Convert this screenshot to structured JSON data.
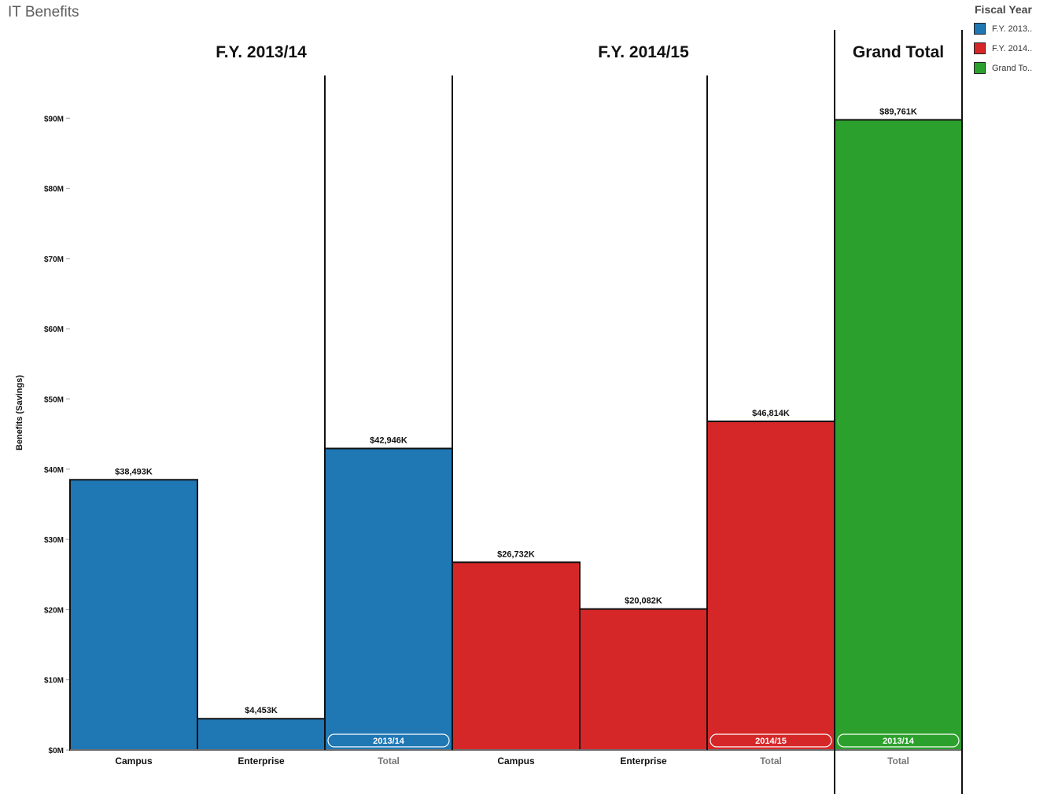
{
  "app": {
    "title": "IT Benefits"
  },
  "legend": {
    "title": "Fiscal Year",
    "items": [
      {
        "label": "F.Y. 2013..",
        "color": "#1f77b4"
      },
      {
        "label": "F.Y. 2014..",
        "color": "#d62728"
      },
      {
        "label": "Grand To..",
        "color": "#2ca02c"
      }
    ]
  },
  "chart_data": {
    "type": "bar",
    "title": "",
    "ylabel": "Benefits (Savings)",
    "xlabel": "",
    "ylim": [
      0,
      95
    ],
    "yticks": [
      0,
      10,
      20,
      30,
      40,
      50,
      60,
      70,
      80,
      90
    ],
    "ytick_labels": [
      "$0M",
      "$10M",
      "$20M",
      "$30M",
      "$40M",
      "$50M",
      "$60M",
      "$70M",
      "$80M",
      "$90M"
    ],
    "grid": false,
    "legend_position": "top-right",
    "panes": [
      {
        "header": "F.Y. 2013/14"
      },
      {
        "header": "F.Y. 2014/15"
      },
      {
        "header": "Grand Total"
      }
    ],
    "bars": [
      {
        "pane": 0,
        "category": "Campus",
        "value": 38.493,
        "data_label": "$38,493K",
        "color": "#1f77b4",
        "badge": ""
      },
      {
        "pane": 0,
        "category": "Enterprise",
        "value": 4.453,
        "data_label": "$4,453K",
        "color": "#1f77b4",
        "badge": ""
      },
      {
        "pane": 0,
        "category": "Total",
        "value": 42.946,
        "data_label": "$42,946K",
        "color": "#1f77b4",
        "badge": "2013/14"
      },
      {
        "pane": 1,
        "category": "Campus",
        "value": 26.732,
        "data_label": "$26,732K",
        "color": "#d62728",
        "badge": ""
      },
      {
        "pane": 1,
        "category": "Enterprise",
        "value": 20.082,
        "data_label": "$20,082K",
        "color": "#d62728",
        "badge": ""
      },
      {
        "pane": 1,
        "category": "Total",
        "value": 46.814,
        "data_label": "$46,814K",
        "color": "#d62728",
        "badge": "2014/15"
      },
      {
        "pane": 2,
        "category": "Total",
        "value": 89.761,
        "data_label": "$89,761K",
        "color": "#2ca02c",
        "badge": "2013/14"
      }
    ]
  }
}
